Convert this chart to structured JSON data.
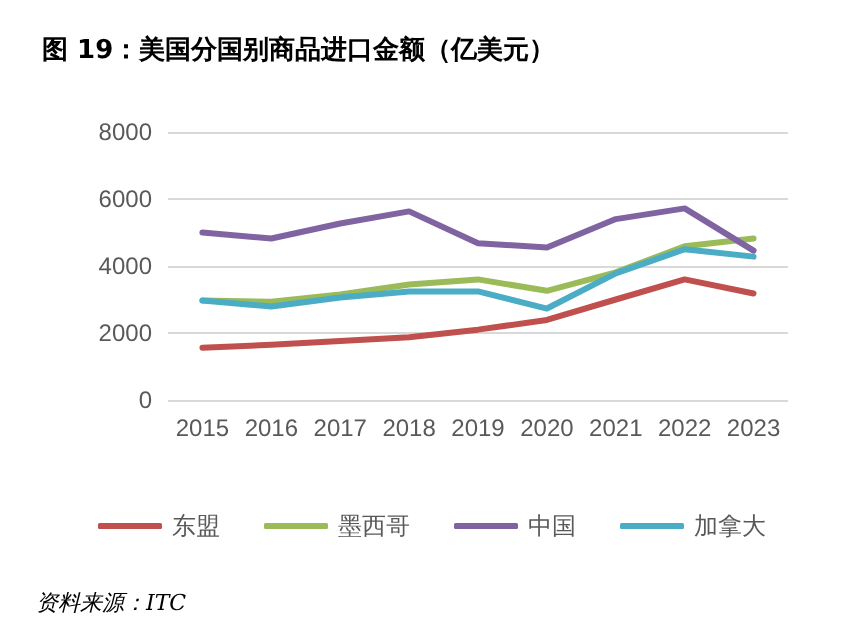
{
  "chart_data": {
    "type": "line",
    "title": "图 19：美国分国别商品进口金额（亿美元）",
    "categories": [
      "2015",
      "2016",
      "2017",
      "2018",
      "2019",
      "2020",
      "2021",
      "2022",
      "2023"
    ],
    "series": [
      {
        "name": "东盟",
        "color": "#c0504d",
        "values": [
          1560,
          1650,
          1760,
          1870,
          2100,
          2390,
          3000,
          3600,
          3180
        ]
      },
      {
        "name": "墨西哥",
        "color": "#9bbb59",
        "values": [
          2970,
          2930,
          3150,
          3450,
          3600,
          3260,
          3810,
          4590,
          4820
        ]
      },
      {
        "name": "中国",
        "color": "#8064a2",
        "values": [
          5000,
          4820,
          5270,
          5630,
          4680,
          4550,
          5400,
          5720,
          4460
        ]
      },
      {
        "name": "加拿大",
        "color": "#4bacc6",
        "values": [
          2970,
          2790,
          3060,
          3240,
          3240,
          2730,
          3780,
          4500,
          4280
        ]
      }
    ],
    "ylim": [
      0,
      8000
    ],
    "yticks": [
      0,
      2000,
      4000,
      6000,
      8000
    ],
    "grid": "y",
    "legend": "bottom",
    "marker": "none",
    "line_style": "solid",
    "annotations": [
      "资料来源：ITC"
    ]
  }
}
